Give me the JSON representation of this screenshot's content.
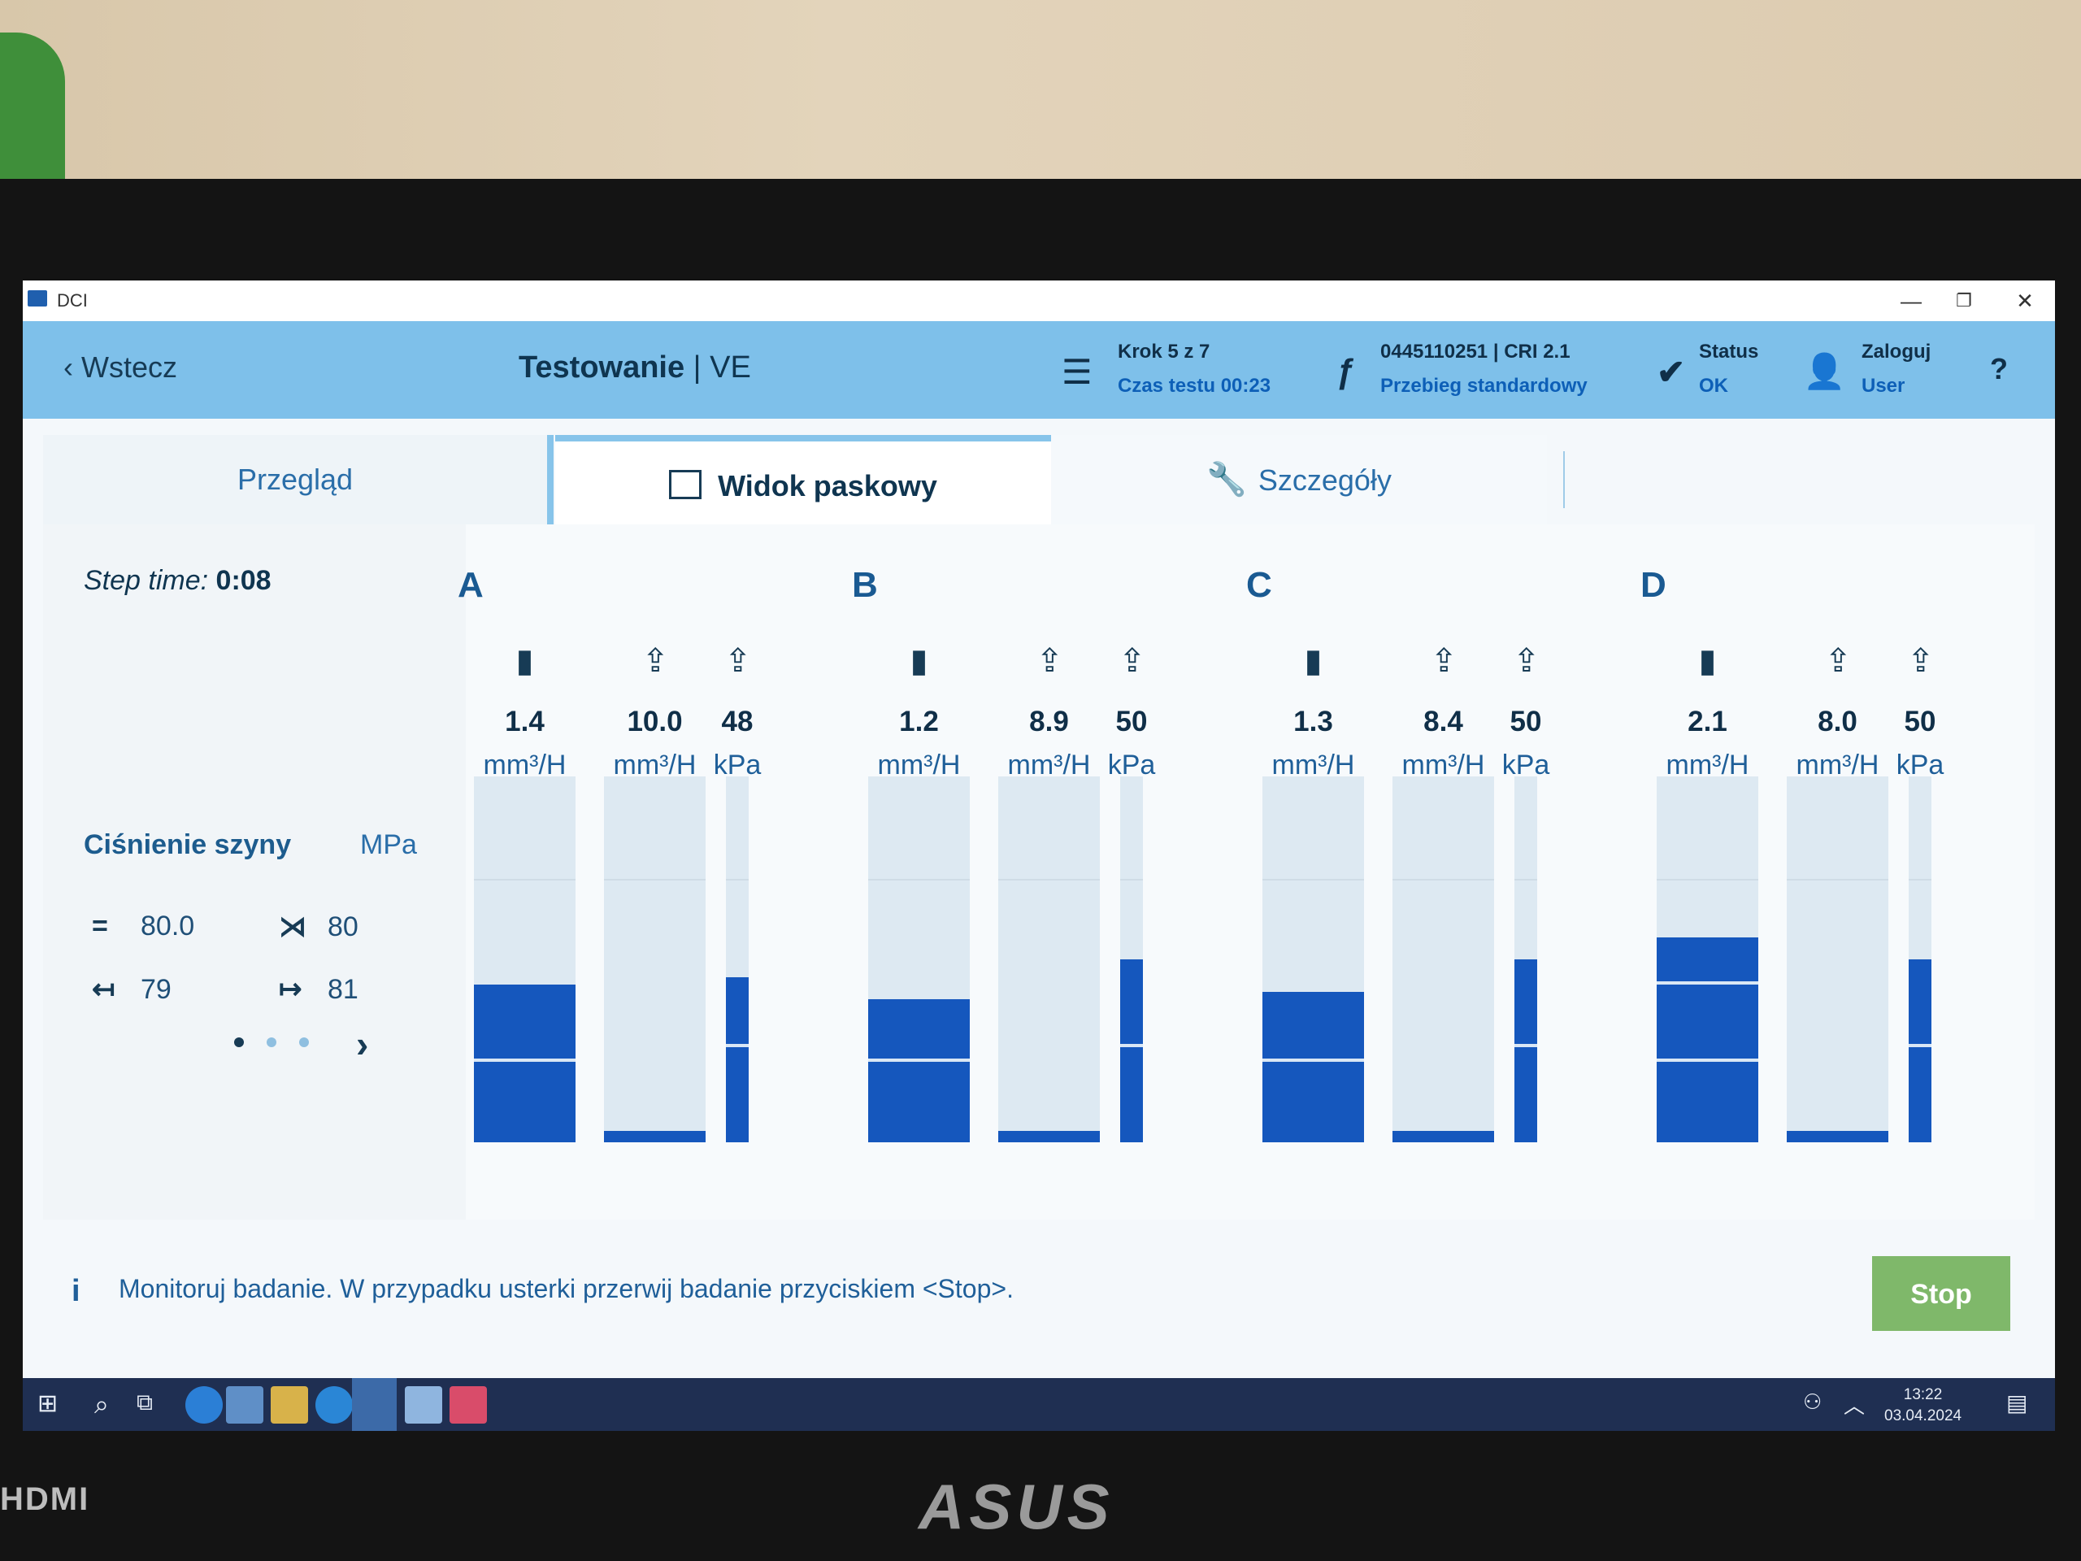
{
  "window": {
    "title": "DCI",
    "minimize": "—",
    "restore": "❐",
    "close": "✕"
  },
  "header": {
    "back_label": "Wstecz",
    "title_main": "Testowanie",
    "title_sep": " | ",
    "title_sub": "VE",
    "step_line1": "Krok 5 z 7",
    "step_line2": "Czas testu 00:23",
    "device_line1": "0445110251 | CRI 2.1",
    "device_line2": "Przebieg standardowy",
    "status_line1": "Status",
    "status_line2": "OK",
    "login_line1": "Zaloguj",
    "login_line2": "User",
    "help": "?"
  },
  "tabs": [
    {
      "label": "Przegląd"
    },
    {
      "label": "Widok paskowy"
    },
    {
      "label": "Szczegóły"
    }
  ],
  "left_panel": {
    "step_time_label": "Step time:",
    "step_time_value": "0:08",
    "pressure_title": "Ciśnienie szyny",
    "pressure_unit": "MPa",
    "rows": [
      {
        "sym_a": "=",
        "val_a": "80.0",
        "sym_b": "⋊",
        "val_b": "80"
      },
      {
        "sym_a": "↤",
        "val_a": "79",
        "sym_b": "↦",
        "val_b": "81"
      }
    ],
    "next": "›"
  },
  "groups": [
    {
      "label": "A",
      "columns": [
        {
          "icon": "injector-icon",
          "value": "1.4",
          "unit": "mm³/H",
          "fill": 0.43,
          "marks": [
            0.22
          ]
        },
        {
          "icon": "return-icon",
          "value": "10.0",
          "unit": "mm³/H",
          "fill": 0.03,
          "marks": []
        },
        {
          "icon": "pressure-icon",
          "value": "48",
          "unit": "kPa",
          "fill": 0.45,
          "marks": [
            0.26
          ]
        }
      ]
    },
    {
      "label": "B",
      "columns": [
        {
          "icon": "injector-icon",
          "value": "1.2",
          "unit": "mm³/H",
          "fill": 0.39,
          "marks": [
            0.22
          ]
        },
        {
          "icon": "return-icon",
          "value": "8.9",
          "unit": "mm³/H",
          "fill": 0.03,
          "marks": []
        },
        {
          "icon": "pressure-icon",
          "value": "50",
          "unit": "kPa",
          "fill": 0.5,
          "marks": [
            0.26
          ]
        }
      ]
    },
    {
      "label": "C",
      "columns": [
        {
          "icon": "injector-icon",
          "value": "1.3",
          "unit": "mm³/H",
          "fill": 0.41,
          "marks": [
            0.22
          ]
        },
        {
          "icon": "return-icon",
          "value": "8.4",
          "unit": "mm³/H",
          "fill": 0.03,
          "marks": []
        },
        {
          "icon": "pressure-icon",
          "value": "50",
          "unit": "kPa",
          "fill": 0.5,
          "marks": [
            0.26
          ]
        }
      ]
    },
    {
      "label": "D",
      "columns": [
        {
          "icon": "injector-icon",
          "value": "2.1",
          "unit": "mm³/H",
          "fill": 0.56,
          "marks": [
            0.43,
            0.22
          ]
        },
        {
          "icon": "return-icon",
          "value": "8.0",
          "unit": "mm³/H",
          "fill": 0.03,
          "marks": []
        },
        {
          "icon": "pressure-icon",
          "value": "50",
          "unit": "kPa",
          "fill": 0.5,
          "marks": [
            0.26
          ]
        }
      ]
    }
  ],
  "footer": {
    "info_icon": "i",
    "message": "Monitoruj badanie. W przypadku usterki przerwij badanie przyciskiem <Stop>.",
    "stop_label": "Stop"
  },
  "taskbar": {
    "time": "13:22",
    "date": "03.04.2024"
  },
  "bezel": {
    "hdmi": "HDMI",
    "brand": "ASUS"
  },
  "colors": {
    "header": "#7ec0ea",
    "bar_fill": "#1557bd",
    "bar_bg": "#dde9f2",
    "stop": "#7fb86a",
    "taskbar": "#1f2f52"
  }
}
